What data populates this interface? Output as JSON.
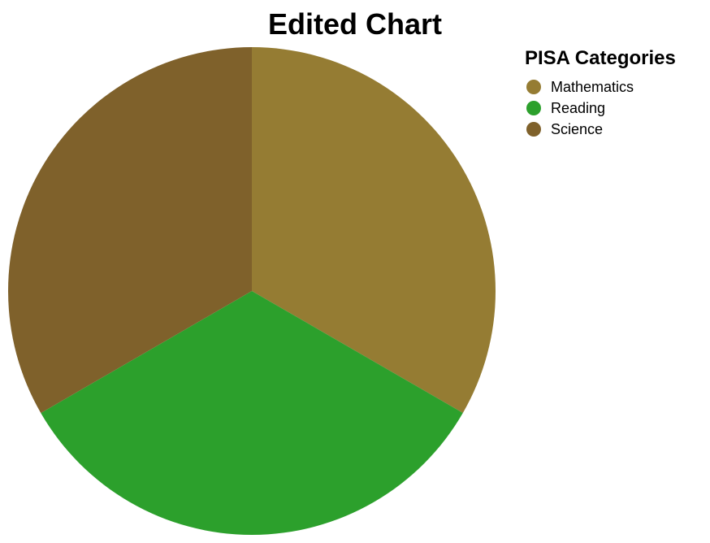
{
  "chart_data": {
    "type": "pie",
    "title": "Edited Chart",
    "legend_title": "PISA Categories",
    "legend_position": "top-right",
    "categories": [
      "Mathematics",
      "Reading",
      "Science"
    ],
    "values": [
      33.33,
      33.33,
      33.34
    ],
    "colors": [
      "#957c33",
      "#2ca02c",
      "#7f612b"
    ],
    "start_angle_deg": 0,
    "direction": "clockwise"
  }
}
